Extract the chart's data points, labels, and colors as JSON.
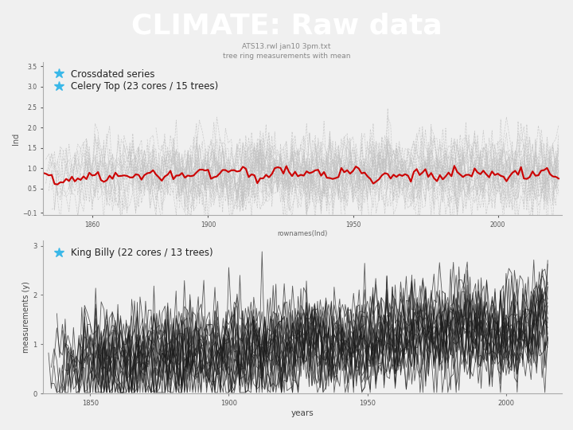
{
  "title": "CLIMATE: Raw data",
  "title_bg_color": "#3ab8e8",
  "title_text_color": "#ffffff",
  "title_fontsize": 26,
  "top_plot": {
    "xlabel": "rownames(Ind)",
    "ylabel": "Ind",
    "xlim": [
      1843,
      2022
    ],
    "ylim": [
      -0.15,
      3.6
    ],
    "yticks": [
      -0.1,
      0.5,
      1.0,
      1.5,
      2.0,
      2.5,
      3.0,
      3.5
    ],
    "ytick_labels": [
      "-0.1",
      "0.5",
      "1.0",
      "1.5",
      "2.0",
      "2.5",
      "3.0",
      "3.5"
    ],
    "xticks": [
      1860,
      1900,
      1950,
      2000
    ],
    "legend1": "Crossdated series",
    "legend2": "Celery Top (23 cores / 15 trees)",
    "legend_color": "#3ab8e8",
    "line_color_individual": "#c0c0c0",
    "line_color_mean": "#cc0000",
    "n_individual": 23,
    "x_start": 1843,
    "x_end": 2021
  },
  "bottom_plot": {
    "title_inner": "ATS13.rwl jan10 3pm.txt\ntree ring measurements with mean",
    "xlabel": "years",
    "ylabel": "measurements (y)",
    "xlim": [
      1833,
      2020
    ],
    "ylim": [
      0,
      3.1
    ],
    "yticks": [
      0,
      1,
      2,
      3
    ],
    "xticks": [
      1850,
      1900,
      1950,
      2000
    ],
    "legend1": "King Billy (22 cores / 13 trees)",
    "legend_color": "#3ab8e8",
    "line_color_individual": "#1a1a1a",
    "n_individual": 22,
    "x_start": 1833,
    "x_end": 2015
  },
  "bg_color": "#f0f0f0"
}
